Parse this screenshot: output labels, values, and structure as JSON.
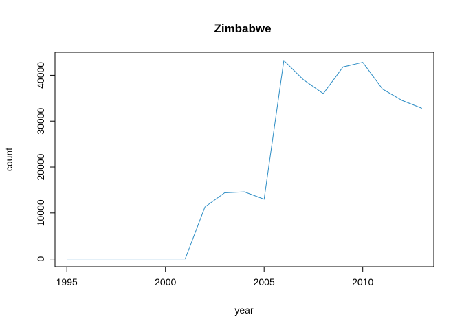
{
  "chart_data": {
    "type": "line",
    "title": "Zimbabwe",
    "xlabel": "year",
    "ylabel": "count",
    "xlim": [
      1994.4,
      2013.6
    ],
    "ylim": [
      -1700,
      45000
    ],
    "x_ticks": [
      1995,
      2000,
      2005,
      2010
    ],
    "x_tick_labels": [
      "1995",
      "2000",
      "2005",
      "2010"
    ],
    "y_ticks": [
      0,
      10000,
      20000,
      30000,
      40000
    ],
    "y_tick_labels": [
      "0",
      "10000",
      "20000",
      "30000",
      "40000"
    ],
    "grid": false,
    "series": [
      {
        "color": "#2b8cc4",
        "x": [
          1995,
          1996,
          1997,
          1998,
          1999,
          2000,
          2001,
          2002,
          2003,
          2004,
          2005,
          2006,
          2007,
          2008,
          2009,
          2010,
          2011,
          2012,
          2013
        ],
        "y": [
          0,
          0,
          0,
          0,
          0,
          0,
          0,
          11300,
          14400,
          14600,
          13000,
          43200,
          39000,
          36000,
          41800,
          42800,
          37000,
          34500,
          32800
        ]
      }
    ]
  }
}
